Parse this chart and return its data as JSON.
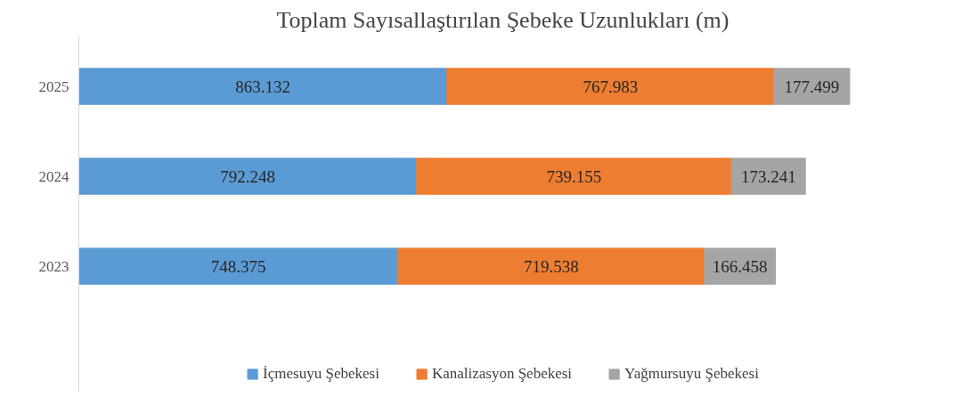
{
  "chart_data": {
    "type": "bar",
    "orientation": "horizontal",
    "stacked": true,
    "title": "Toplam Sayısallaştırılan Şebeke Uzunlukları (m)",
    "categories": [
      "2025",
      "2024",
      "2023"
    ],
    "series": [
      {
        "name": "İçmesuyu Şebekesi",
        "color": "#5b9bd5",
        "values": [
          863132,
          792248,
          748375
        ],
        "value_labels": [
          "863.132",
          "792.248",
          "748.375"
        ]
      },
      {
        "name": "Kanalizasyon Şebekesi",
        "color": "#ed7d31",
        "values": [
          767983,
          739155,
          719538
        ],
        "value_labels": [
          "767.983",
          "739.155",
          "719.538"
        ]
      },
      {
        "name": "Yağmursuyu Şebekesi",
        "color": "#a5a5a5",
        "values": [
          177499,
          173241,
          166458
        ],
        "value_labels": [
          "177.499",
          "173.241",
          "166.458"
        ]
      }
    ],
    "legend": "bottom",
    "grid": false
  }
}
